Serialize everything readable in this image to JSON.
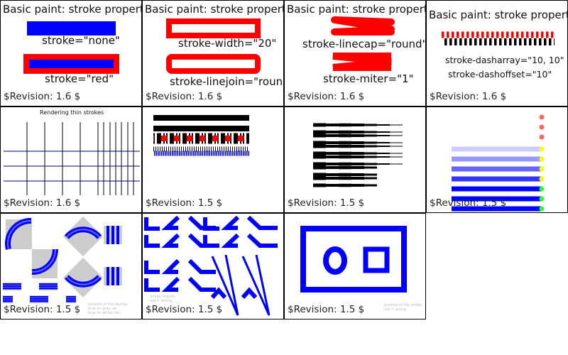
{
  "cells": [
    {
      "title": "Basic paint: stroke properties",
      "labels": [
        "stroke=\"none\"",
        "stroke=\"red\""
      ],
      "revision": "$Revision: 1.6 $"
    },
    {
      "title": "Basic paint: stroke properties",
      "labels": [
        "stroke-width=\"20\"",
        "stroke-linejoin=\"round\""
      ],
      "revision": "$Revision: 1.6 $"
    },
    {
      "title": "Basic paint: stroke properties",
      "labels": [
        "stroke-linecap=\"round\"",
        "stroke-miter=\"1\""
      ],
      "revision": "$Revision: 1.6 $"
    },
    {
      "title": "Basic paint: stroke properties",
      "labels": [
        "stroke-dasharray=\"10, 10\"",
        "stroke-dashoffset=\"10\""
      ],
      "revision": "$Revision: 1.6 $"
    },
    {
      "title": "Rendering thin strokes",
      "revision": "$Revision: 1.6 $"
    },
    {
      "revision": "$Revision: 1.5 $"
    },
    {
      "revision": "$Revision: 1.5 $"
    },
    {
      "revision": "$Revision: 1.5 $"
    },
    {
      "notes": [
        "position of the dashes:",
        "blue on gray: ok",
        "blue on white: fail"
      ],
      "revision": "$Revision: 1.5 $"
    },
    {
      "notes": [
        "stroke-linejoin:",
        "red = wrong"
      ],
      "revision": "$Revision: 1.5 $"
    },
    {
      "notes": [
        "position of the stroke:",
        "red = wrong"
      ],
      "revision": "$Revision: 1.5 $"
    }
  ],
  "colors": {
    "red": "#ff0000",
    "blue": "#0000ff",
    "navy": "#000080",
    "gray": "#cccccc",
    "pink": "#ff6666",
    "yellow": "#ffff00",
    "green": "#33ff33"
  }
}
